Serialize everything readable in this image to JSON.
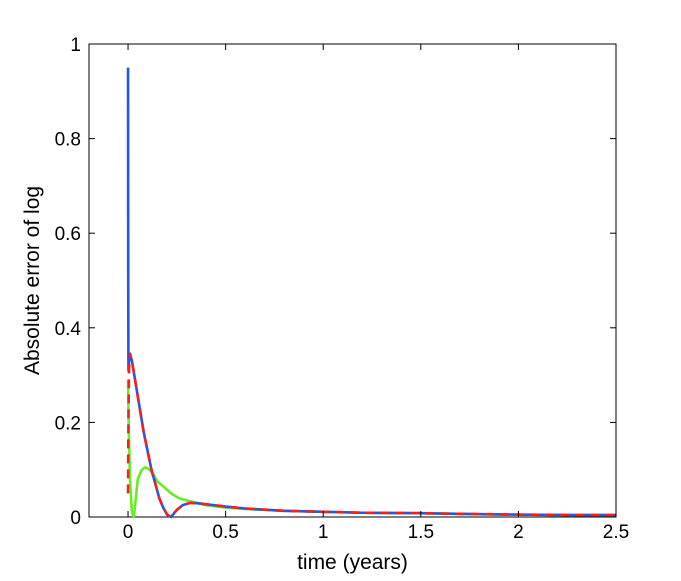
{
  "chart_data": {
    "type": "line",
    "title": "",
    "xlabel": "time (years)",
    "ylabel": "Absolute error of log",
    "xlim": [
      -0.2,
      2.5
    ],
    "ylim": [
      0,
      1
    ],
    "x_ticks": [
      0,
      0.5,
      1,
      1.5,
      2,
      2.5
    ],
    "x_tick_labels": [
      "0",
      "0.5",
      "1",
      "1.5",
      "2",
      "2.5"
    ],
    "y_ticks": [
      0,
      0.2,
      0.4,
      0.6,
      0.8,
      1
    ],
    "y_tick_labels": [
      "0",
      "0.2",
      "0.4",
      "0.6",
      "0.8",
      "1"
    ],
    "grid": false,
    "legend": "none",
    "series": [
      {
        "color": "#66ee22",
        "style": "solid",
        "x": [
          0,
          0.003,
          0.01,
          0.02,
          0.03,
          0.04,
          0.05,
          0.07,
          0.09,
          0.11,
          0.13,
          0.15,
          0.18,
          0.22,
          0.26,
          0.3,
          0.35,
          0.4,
          0.5,
          0.6,
          0.8,
          1.0,
          1.2,
          1.5,
          1.8,
          2.0,
          2.3,
          2.5
        ],
        "y": [
          0.29,
          0.2,
          0.08,
          0.01,
          0.0,
          0.04,
          0.08,
          0.1,
          0.105,
          0.1,
          0.09,
          0.075,
          0.065,
          0.05,
          0.04,
          0.035,
          0.03,
          0.025,
          0.02,
          0.017,
          0.013,
          0.011,
          0.009,
          0.008,
          0.006,
          0.005,
          0.004,
          0.004
        ]
      },
      {
        "color": "#2255ee",
        "style": "solid",
        "x": [
          0,
          0.0005,
          0.001,
          0.002,
          0.005,
          0.01,
          0.02,
          0.04,
          0.06,
          0.08,
          0.1,
          0.12,
          0.14,
          0.16,
          0.18,
          0.2,
          0.22,
          0.25,
          0.28,
          0.32,
          0.36,
          0.4,
          0.5,
          0.6,
          0.8,
          1.0,
          1.2,
          1.5,
          1.8,
          2.0,
          2.3,
          2.5
        ],
        "y": [
          0.95,
          0.75,
          0.5,
          0.31,
          0.33,
          0.345,
          0.33,
          0.28,
          0.23,
          0.18,
          0.14,
          0.1,
          0.07,
          0.04,
          0.02,
          0.005,
          0.0,
          0.015,
          0.025,
          0.03,
          0.029,
          0.027,
          0.022,
          0.018,
          0.013,
          0.011,
          0.009,
          0.008,
          0.006,
          0.005,
          0.004,
          0.004
        ]
      },
      {
        "color": "#ee2222",
        "style": "dashed",
        "x": [
          0,
          0.002,
          0.005,
          0.01,
          0.02,
          0.04,
          0.06,
          0.08,
          0.1,
          0.12,
          0.14,
          0.16,
          0.18,
          0.2,
          0.22,
          0.25,
          0.28,
          0.32,
          0.36,
          0.4,
          0.5,
          0.6,
          0.8,
          1.0,
          1.2,
          1.5,
          1.8,
          2.0,
          2.3,
          2.5
        ],
        "y": [
          0.05,
          0.2,
          0.31,
          0.345,
          0.33,
          0.28,
          0.23,
          0.18,
          0.14,
          0.1,
          0.07,
          0.04,
          0.02,
          0.005,
          0.0,
          0.015,
          0.025,
          0.03,
          0.029,
          0.027,
          0.022,
          0.018,
          0.013,
          0.011,
          0.009,
          0.008,
          0.006,
          0.005,
          0.004,
          0.004
        ]
      }
    ]
  }
}
